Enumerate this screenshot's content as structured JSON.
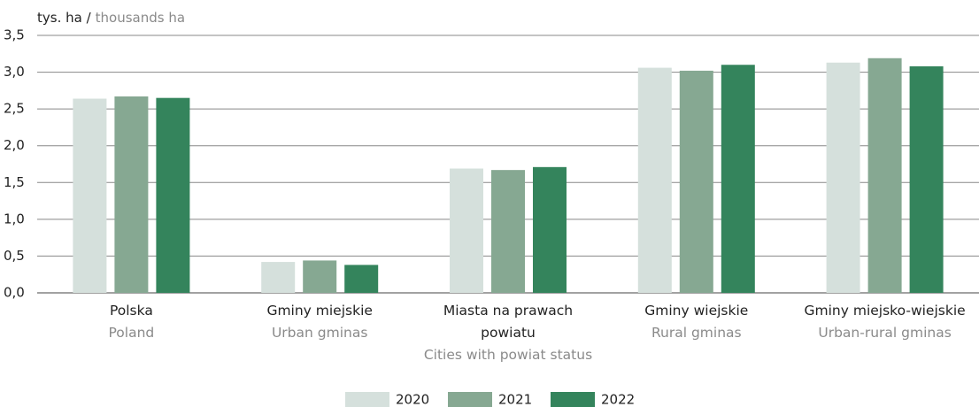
{
  "chart_data": {
    "type": "bar",
    "y_label": "tys. ha /",
    "y_label_en": "thousands ha",
    "categories": [
      "Polska",
      "Gminy miejskie",
      "Miasta na prawach powiatu",
      "Gminy wiejskie",
      "Gminy miejsko-wiejskie"
    ],
    "categories_en": [
      "Poland",
      "Urban gminas",
      "Cities with powiat status",
      "Rural gminas",
      "Urban-rural gminas"
    ],
    "series": [
      {
        "name": "2020",
        "color": "#d5e0dc",
        "values": [
          2.64,
          0.42,
          1.69,
          3.06,
          3.13
        ]
      },
      {
        "name": "2021",
        "color": "#86a892",
        "values": [
          2.67,
          0.44,
          1.67,
          3.02,
          3.19
        ]
      },
      {
        "name": "2022",
        "color": "#34845c",
        "values": [
          2.65,
          0.38,
          1.71,
          3.1,
          3.08
        ]
      }
    ],
    "ylim": [
      0,
      3.5
    ],
    "yticks": [
      {
        "value": 0,
        "label": "0,0"
      },
      {
        "value": 0.5,
        "label": "0,5"
      },
      {
        "value": 1,
        "label": "1,0"
      },
      {
        "value": 1.5,
        "label": "1,5"
      },
      {
        "value": 2,
        "label": "2,0"
      },
      {
        "value": 2.5,
        "label": "2,5"
      },
      {
        "value": 3,
        "label": "3,0"
      },
      {
        "value": 3.5,
        "label": "3,5"
      }
    ],
    "grid": true,
    "legend": "bottom"
  }
}
